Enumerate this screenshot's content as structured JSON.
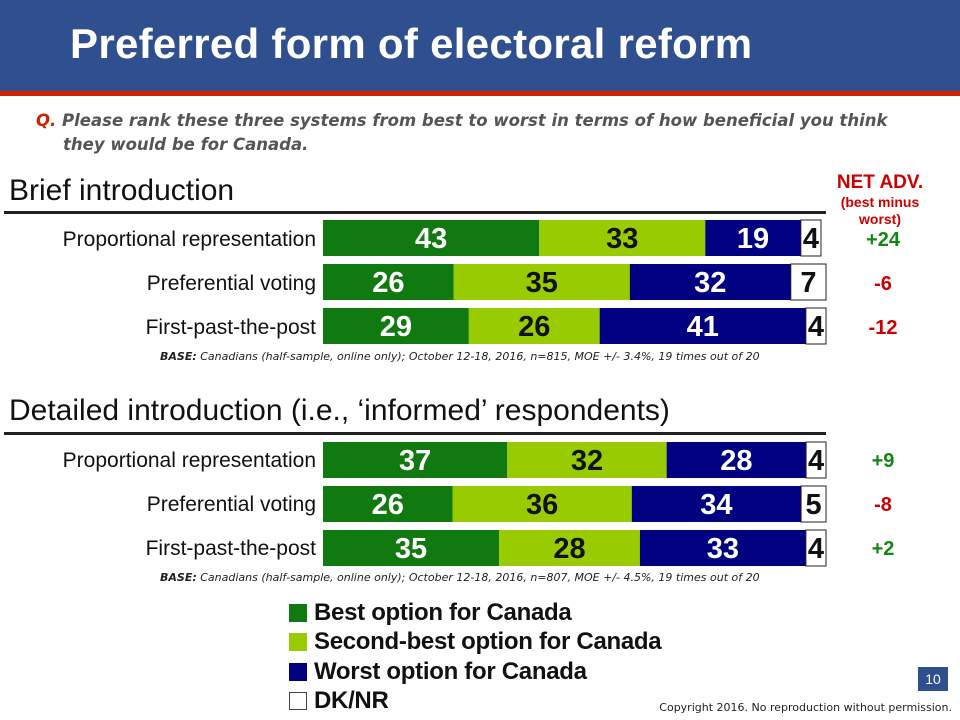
{
  "slide": {
    "title": "Preferred form of electoral reform",
    "question_prefix": "Q.",
    "question_line1": "Please rank these three systems from best to worst in terms of how beneficial you think",
    "question_line2": "they would be for Canada.",
    "net_title": "NET ADV.",
    "net_sub1": "(best minus",
    "net_sub2": "worst)",
    "page_number": "10",
    "copyright": "Copyright 2016. No reproduction without permission."
  },
  "chart_data": {
    "type": "bar",
    "orientation": "horizontal",
    "stacked": true,
    "xlim": [
      0,
      100
    ],
    "series_names": [
      "Best option for Canada",
      "Second-best option for Canada",
      "Worst option for Canada",
      "DK/NR"
    ],
    "colors": [
      "#107a10",
      "#99cc00",
      "#000080",
      "#ffffff"
    ],
    "legend_position": "bottom",
    "panels": [
      {
        "title": "Brief introduction",
        "base_label": "BASE:",
        "base_text": "Canadians (half-sample, online only); October 12-18, 2016, n=815, MOE +/- 3.4%, 19 times out of 20",
        "rows": [
          {
            "label": "Proportional representation",
            "values": [
              43,
              33,
              19,
              4
            ],
            "net": "+24",
            "net_color": "#118811"
          },
          {
            "label": "Preferential voting",
            "values": [
              26,
              35,
              32,
              7
            ],
            "net": "-6",
            "net_color": "#cc0000"
          },
          {
            "label": "First-past-the-post",
            "values": [
              29,
              26,
              41,
              4
            ],
            "net": "-12",
            "net_color": "#cc0000"
          }
        ]
      },
      {
        "title": "Detailed introduction (i.e., ‘informed’ respondents)",
        "base_label": "BASE:",
        "base_text": "Canadians (half-sample, online only); October 12-18, 2016, n=807, MOE +/- 4.5%, 19 times out of 20",
        "rows": [
          {
            "label": "Proportional representation",
            "values": [
              37,
              32,
              28,
              4
            ],
            "net": "+9",
            "net_color": "#118811"
          },
          {
            "label": "Preferential voting",
            "values": [
              26,
              36,
              34,
              5
            ],
            "net": "-8",
            "net_color": "#cc0000"
          },
          {
            "label": "First-past-the-post",
            "values": [
              35,
              28,
              33,
              4
            ],
            "net": "+2",
            "net_color": "#118811"
          }
        ]
      }
    ]
  }
}
